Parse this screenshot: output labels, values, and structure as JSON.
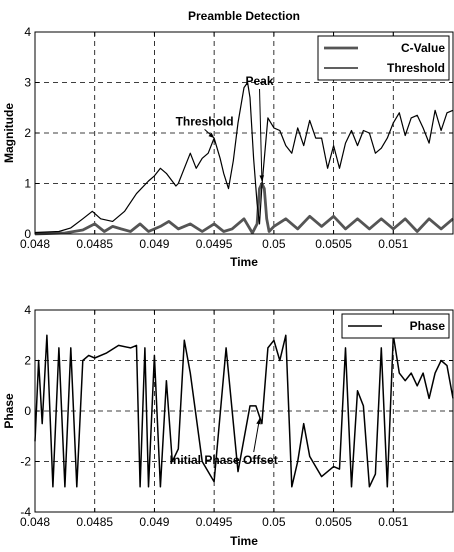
{
  "chart_data": [
    {
      "type": "line",
      "title": "Preamble Detection",
      "xlabel": "Time",
      "ylabel": "Magnitude",
      "xlim": [
        0.048,
        0.0515
      ],
      "ylim": [
        0,
        4
      ],
      "xticks": [
        0.048,
        0.0485,
        0.049,
        0.0495,
        0.05,
        0.0505,
        0.051
      ],
      "xtick_labels": [
        "0.048",
        "0.0485",
        "0.049",
        "0.0495",
        "0.05",
        "0.0505",
        "0.051"
      ],
      "yticks": [
        0,
        1,
        2,
        3,
        4
      ],
      "ytick_labels": [
        "0",
        "1",
        "2",
        "3",
        "4"
      ],
      "grid": true,
      "legend": "top-right",
      "series": [
        {
          "name": "C-Value",
          "color": "#555555",
          "x": [
            0.048,
            0.04825,
            0.0484,
            0.0485,
            0.04858,
            0.04865,
            0.04872,
            0.0488,
            0.04888,
            0.04895,
            0.04905,
            0.04912,
            0.0492,
            0.0493,
            0.0494,
            0.0495,
            0.04958,
            0.04965,
            0.04975,
            0.04982,
            0.04986,
            0.04988,
            0.0499,
            0.04992,
            0.04994,
            0.04996,
            0.05,
            0.0501,
            0.0502,
            0.0503,
            0.0504,
            0.0505,
            0.0506,
            0.0507,
            0.0508,
            0.0509,
            0.051,
            0.0511,
            0.0512,
            0.0513,
            0.0514,
            0.0515
          ],
          "y": [
            0.0,
            0.02,
            0.08,
            0.2,
            0.05,
            0.15,
            0.1,
            0.05,
            0.2,
            0.05,
            0.15,
            0.25,
            0.1,
            0.2,
            0.05,
            0.2,
            0.05,
            0.1,
            0.3,
            0.02,
            0.2,
            0.9,
            1.0,
            0.9,
            0.3,
            0.05,
            0.15,
            0.3,
            0.1,
            0.35,
            0.15,
            0.35,
            0.1,
            0.3,
            0.1,
            0.3,
            0.1,
            0.3,
            0.05,
            0.3,
            0.1,
            0.3
          ]
        },
        {
          "name": "Threshold",
          "color": "#000000",
          "x": [
            0.048,
            0.0482,
            0.0483,
            0.0484,
            0.04848,
            0.04855,
            0.04865,
            0.04875,
            0.04885,
            0.04895,
            0.049,
            0.04905,
            0.0491,
            0.04918,
            0.0492,
            0.04925,
            0.0493,
            0.04935,
            0.0494,
            0.04945,
            0.0495,
            0.04955,
            0.04958,
            0.04962,
            0.04966,
            0.0497,
            0.04975,
            0.04978,
            0.0498,
            0.04983,
            0.04986,
            0.04988,
            0.0499,
            0.04995,
            0.05,
            0.05005,
            0.0501,
            0.05015,
            0.0502,
            0.05025,
            0.0503,
            0.05035,
            0.0504,
            0.05045,
            0.0505,
            0.05055,
            0.0506,
            0.05065,
            0.0507,
            0.05075,
            0.0508,
            0.05085,
            0.0509,
            0.05095,
            0.051,
            0.05105,
            0.0511,
            0.05115,
            0.0512,
            0.05125,
            0.0513,
            0.05135,
            0.0514,
            0.05145,
            0.0515
          ],
          "y": [
            0.03,
            0.05,
            0.12,
            0.3,
            0.45,
            0.3,
            0.25,
            0.45,
            0.8,
            1.05,
            1.15,
            1.3,
            1.2,
            0.95,
            1.0,
            1.3,
            1.6,
            1.3,
            1.5,
            1.6,
            1.9,
            1.5,
            1.2,
            0.9,
            1.45,
            2.2,
            2.9,
            3.0,
            2.7,
            1.5,
            0.6,
            0.2,
            0.95,
            2.3,
            2.1,
            2.05,
            1.75,
            1.6,
            2.1,
            1.75,
            2.25,
            1.9,
            1.9,
            1.3,
            1.75,
            1.3,
            1.8,
            2.05,
            1.75,
            2.05,
            2.0,
            1.6,
            1.7,
            1.9,
            2.2,
            2.4,
            1.95,
            2.3,
            2.35,
            2.1,
            1.8,
            2.45,
            2.05,
            2.4,
            2.45
          ]
        }
      ],
      "annotations": [
        {
          "text": "Peak",
          "x": 0.04988,
          "y": 2.95,
          "arrow_to": [
            0.0499,
            1.05
          ]
        },
        {
          "text": "Threshold",
          "x": 0.04942,
          "y": 2.15,
          "arrow_to": [
            0.0495,
            1.9
          ]
        }
      ]
    },
    {
      "type": "line",
      "title": "",
      "xlabel": "Time",
      "ylabel": "Phase",
      "xlim": [
        0.048,
        0.0515
      ],
      "ylim": [
        -4,
        4
      ],
      "xticks": [
        0.048,
        0.0485,
        0.049,
        0.0495,
        0.05,
        0.0505,
        0.051
      ],
      "xtick_labels": [
        "0.048",
        "0.0485",
        "0.049",
        "0.0495",
        "0.05",
        "0.0505",
        "0.051"
      ],
      "yticks": [
        -4,
        -2,
        0,
        2,
        4
      ],
      "ytick_labels": [
        "-4",
        "-2",
        "0",
        "2",
        "4"
      ],
      "grid": true,
      "legend": "top-right",
      "series": [
        {
          "name": "Phase",
          "color": "#000000",
          "x": [
            0.048,
            0.04803,
            0.04806,
            0.0481,
            0.04815,
            0.0482,
            0.04825,
            0.0483,
            0.04835,
            0.0484,
            0.04845,
            0.0485,
            0.0486,
            0.0487,
            0.0488,
            0.04885,
            0.04888,
            0.04892,
            0.04895,
            0.049,
            0.04905,
            0.0491,
            0.04915,
            0.0492,
            0.04925,
            0.0493,
            0.0494,
            0.0495,
            0.0496,
            0.0497,
            0.0498,
            0.04985,
            0.0499,
            0.04995,
            0.05,
            0.05005,
            0.0501,
            0.05015,
            0.0502,
            0.05025,
            0.0503,
            0.05035,
            0.0504,
            0.05045,
            0.0505,
            0.05055,
            0.0506,
            0.05065,
            0.0507,
            0.05075,
            0.0508,
            0.05085,
            0.0509,
            0.05095,
            0.051,
            0.05105,
            0.0511,
            0.05115,
            0.0512,
            0.05125,
            0.0513,
            0.05135,
            0.0514,
            0.05145,
            0.0515
          ],
          "y": [
            -1.2,
            2.0,
            -0.5,
            3.0,
            -3.0,
            2.5,
            -3.0,
            2.5,
            -3.0,
            2.0,
            2.2,
            2.1,
            2.3,
            2.6,
            2.5,
            2.6,
            -3.0,
            2.5,
            -3.0,
            2.2,
            -3.0,
            1.2,
            -2.0,
            -1.5,
            2.8,
            1.5,
            -2.0,
            -2.8,
            2.5,
            -2.4,
            0.2,
            0.2,
            -0.5,
            2.5,
            2.8,
            2.0,
            3.0,
            -3.0,
            -2.0,
            -0.5,
            -1.8,
            -2.2,
            -2.6,
            -2.4,
            -2.2,
            -2.3,
            2.5,
            -3.0,
            0.8,
            0.2,
            -3.0,
            -2.5,
            2.5,
            -3.0,
            3.0,
            1.5,
            1.2,
            1.5,
            1.0,
            1.5,
            0.5,
            1.5,
            2.0,
            1.8,
            0.5
          ]
        }
      ],
      "annotations": [
        {
          "text": "Initial Phase Offset",
          "x": 0.04958,
          "y": -2.1,
          "arrow_to": [
            0.04988,
            -0.3
          ]
        }
      ]
    }
  ]
}
